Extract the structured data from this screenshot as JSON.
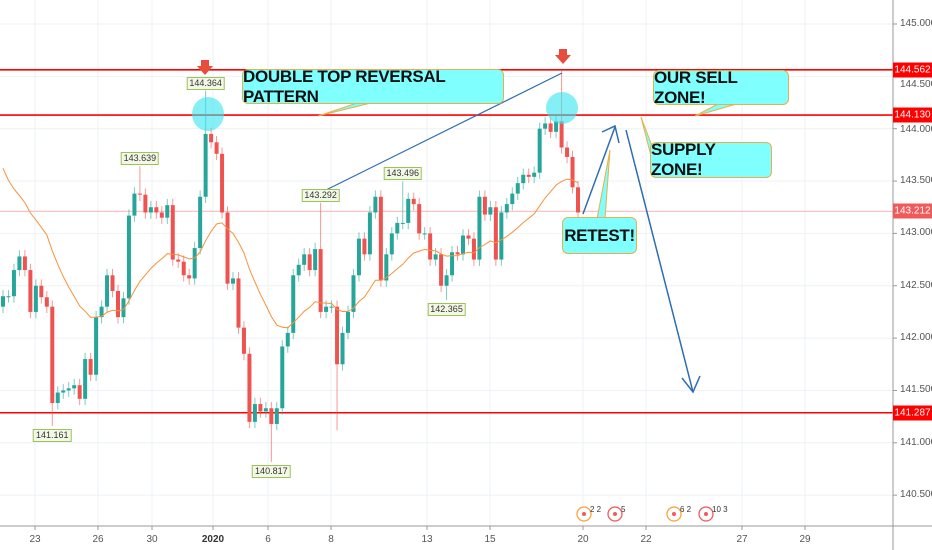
{
  "chart_data": {
    "type": "bar",
    "subtype": "ohlc-candlestick",
    "title": "",
    "ylim": [
      140.3,
      145.2
    ],
    "y_ticks": [
      "145.000",
      "144.500",
      "144.000",
      "143.500",
      "143.000",
      "142.500",
      "142.000",
      "141.500",
      "141.000",
      "140.500"
    ],
    "y_tick_values": [
      145.0,
      144.5,
      144.0,
      143.5,
      143.0,
      142.5,
      142.0,
      141.5,
      141.0,
      140.5
    ],
    "x_ticks": [
      "23",
      "26",
      "30",
      "2020",
      "6",
      "8",
      "13",
      "15",
      "20",
      "22",
      "27",
      "29"
    ],
    "first_open": 142.3,
    "closes": [
      142.4,
      142.4,
      142.65,
      142.78,
      142.65,
      142.25,
      142.5,
      142.39,
      142.3,
      141.38,
      141.48,
      141.5,
      141.52,
      141.55,
      141.42,
      141.8,
      141.65,
      142.2,
      142.3,
      142.6,
      142.45,
      142.2,
      142.38,
      143.17,
      143.38,
      143.37,
      143.2,
      143.25,
      143.2,
      143.15,
      143.27,
      142.75,
      142.73,
      142.6,
      142.57,
      142.86,
      143.35,
      143.95,
      143.87,
      143.76,
      143.2,
      142.52,
      142.57,
      142.1,
      141.85,
      141.2,
      141.37,
      141.3,
      141.33,
      141.18,
      141.33,
      141.92,
      142.05,
      142.6,
      142.7,
      142.8,
      142.65,
      142.85,
      142.25,
      142.3,
      142.3,
      141.75,
      142.05,
      142.25,
      142.6,
      142.95,
      142.8,
      143.2,
      143.35,
      142.55,
      142.8,
      143.0,
      143.1,
      143.1,
      143.33,
      143.28,
      143.0,
      143.0,
      142.75,
      142.8,
      142.5,
      142.6,
      142.82,
      142.8,
      142.98,
      142.95,
      142.75,
      143.35,
      143.18,
      143.25,
      142.75,
      143.2,
      143.28,
      143.38,
      143.48,
      143.56,
      143.54,
      143.58,
      144.0,
      144.05,
      143.97,
      144.07,
      143.82,
      143.73,
      143.44,
      143.2
    ],
    "wick_overrides": [
      {
        "index": 9,
        "low": 141.161
      },
      {
        "index": 25,
        "high": 143.639
      },
      {
        "index": 37,
        "high": 144.364
      },
      {
        "index": 49,
        "low": 140.817
      },
      {
        "index": 58,
        "high": 143.292
      },
      {
        "index": 61,
        "low": 141.12
      },
      {
        "index": 73,
        "high": 143.496
      },
      {
        "index": 81,
        "low": 142.365
      },
      {
        "index": 102,
        "high": 144.562
      }
    ],
    "moving_average": {
      "type": "ema",
      "period": 20,
      "seed": 143.75,
      "color": "#f7923a"
    },
    "price_labels": [
      {
        "text": "144.364",
        "index": 37,
        "value": 144.364,
        "side": "above"
      },
      {
        "text": "143.639",
        "index": 25,
        "value": 143.639,
        "side": "above"
      },
      {
        "text": "141.161",
        "index": 9,
        "value": 141.161,
        "side": "below"
      },
      {
        "text": "140.817",
        "index": 49,
        "value": 140.817,
        "side": "below"
      },
      {
        "text": "143.292",
        "index": 58,
        "value": 143.292,
        "side": "above"
      },
      {
        "text": "143.496",
        "index": 73,
        "value": 143.496,
        "side": "above"
      },
      {
        "text": "142.365",
        "index": 81,
        "value": 142.365,
        "side": "below"
      }
    ],
    "horizontal_levels": [
      {
        "value": 144.562,
        "label": "144.562",
        "color": "#ff0000"
      },
      {
        "value": 144.13,
        "label": "144.130",
        "color": "#ff0000"
      },
      {
        "value": 141.287,
        "label": "141.287",
        "color": "#ff0000"
      }
    ],
    "last_price": {
      "value": 143.212,
      "label": "143.212",
      "color": "#f05a5a"
    },
    "annotations": {
      "double_top": "DOUBLE TOP REVERSAL PATTERN",
      "sell_zone": "OUR SELL ZONE!",
      "supply_zone": "SUPPLY ZONE!",
      "retest": "RETEST!"
    },
    "events": [
      "2 2",
      "5",
      "6 2",
      "10 3"
    ]
  },
  "colors": {
    "up": "#26a69a",
    "down": "#ef5350",
    "level": "#ff0000",
    "trend": "#2e6db4",
    "annotation_bg": "#80ffff",
    "annotation_border": "#e8b04a"
  }
}
